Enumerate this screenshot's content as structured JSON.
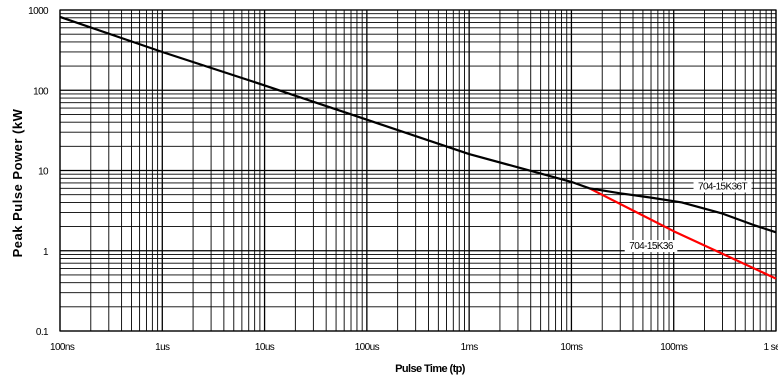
{
  "chart_data": {
    "type": "line",
    "xlabel": "Pulse Time (tp)",
    "ylabel": "Peak Pulse Power (kW",
    "x_scale": "log",
    "y_scale": "log",
    "x_unit": "seconds",
    "y_unit": "kW",
    "xlim": [
      1e-07,
      1
    ],
    "ylim": [
      0.1,
      1000
    ],
    "grid": true,
    "x_ticks": [
      {
        "value": 1e-07,
        "label": "100ns"
      },
      {
        "value": 1e-06,
        "label": "1us"
      },
      {
        "value": 1e-05,
        "label": "10us"
      },
      {
        "value": 0.0001,
        "label": "100us"
      },
      {
        "value": 0.001,
        "label": "1ms"
      },
      {
        "value": 0.01,
        "label": "10ms"
      },
      {
        "value": 0.1,
        "label": "100ms"
      },
      {
        "value": 1,
        "label": "1 sec"
      }
    ],
    "y_ticks": [
      {
        "value": 1000,
        "label": "1000"
      },
      {
        "value": 100,
        "label": "100"
      },
      {
        "value": 10,
        "label": "10"
      },
      {
        "value": 1,
        "label": "1"
      },
      {
        "value": 0.1,
        "label": "0.1"
      }
    ],
    "series": [
      {
        "name": "704-15K36T",
        "color": "#000000",
        "label_at": {
          "x": 0.3,
          "y": 5.8
        },
        "points": [
          {
            "x": 1e-07,
            "y": 820
          },
          {
            "x": 1e-06,
            "y": 300
          },
          {
            "x": 1e-05,
            "y": 115
          },
          {
            "x": 0.0001,
            "y": 43
          },
          {
            "x": 0.001,
            "y": 16
          },
          {
            "x": 0.01,
            "y": 7.2
          },
          {
            "x": 0.015,
            "y": 6.0
          },
          {
            "x": 0.03,
            "y": 5.2
          },
          {
            "x": 0.06,
            "y": 4.6
          },
          {
            "x": 0.12,
            "y": 4.0
          },
          {
            "x": 0.3,
            "y": 2.9
          },
          {
            "x": 0.6,
            "y": 2.1
          },
          {
            "x": 1,
            "y": 1.7
          }
        ]
      },
      {
        "name": "704-15K36",
        "color": "#ff0000",
        "label_at": {
          "x": 0.06,
          "y": 1.05
        },
        "points": [
          {
            "x": 0.015,
            "y": 6.0
          },
          {
            "x": 0.1,
            "y": 1.75
          },
          {
            "x": 1,
            "y": 0.45
          }
        ]
      }
    ]
  }
}
